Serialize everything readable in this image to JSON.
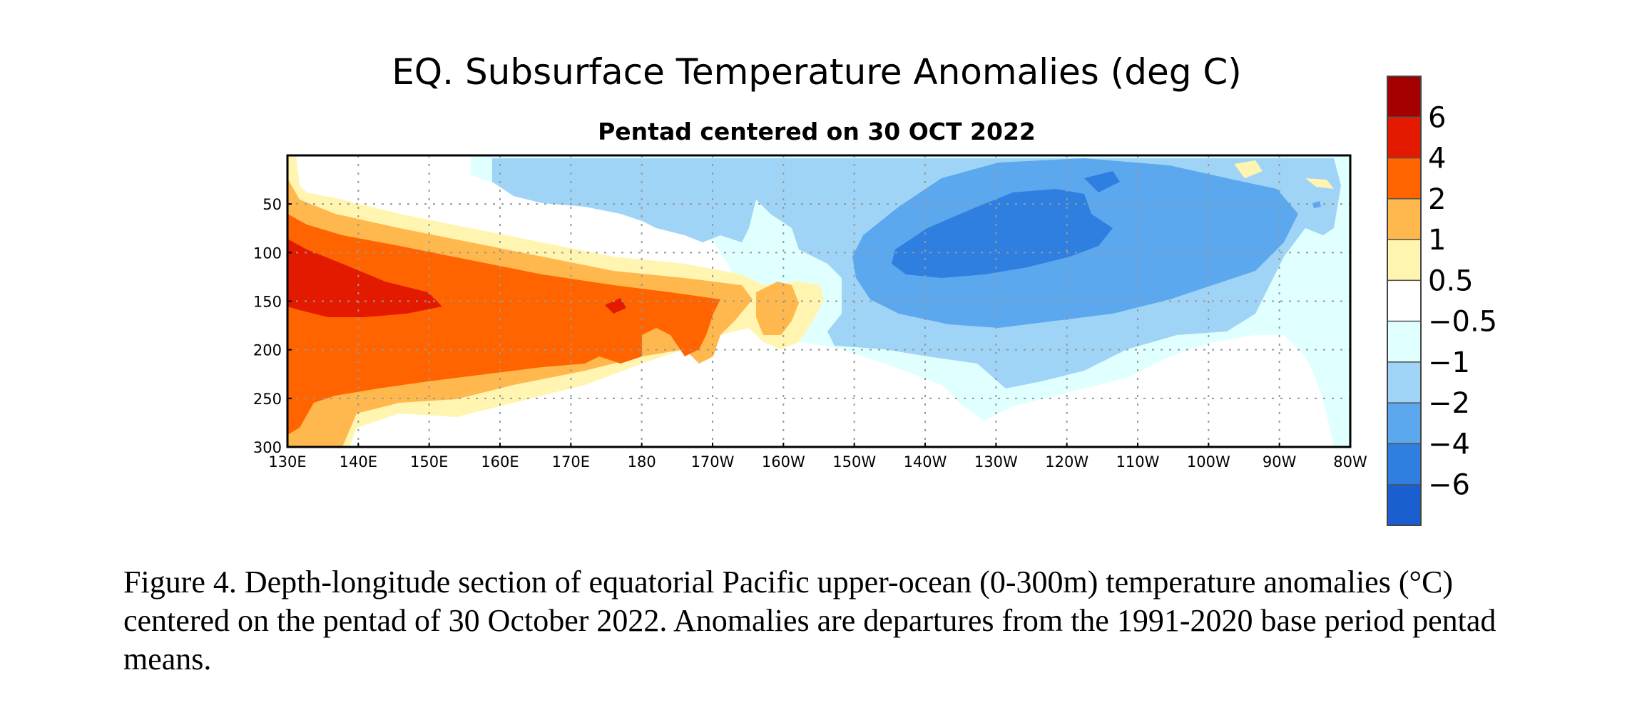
{
  "chart_data": {
    "type": "heatmap",
    "title": "EQ. Subsurface Temperature Anomalies (deg C)",
    "subtitle": "Pentad centered on 30 OCT 2022",
    "xlabel": "",
    "ylabel": "",
    "x_ticks": [
      "130E",
      "140E",
      "150E",
      "160E",
      "170E",
      "180",
      "170W",
      "160W",
      "150W",
      "140W",
      "130W",
      "120W",
      "110W",
      "100W",
      "90W",
      "80W"
    ],
    "y_ticks": [
      "50",
      "100",
      "150",
      "200",
      "250",
      "300"
    ],
    "x_range_deg_east": [
      130,
      280
    ],
    "y_range_m": [
      0,
      300
    ],
    "y_reversed": true,
    "grid": true,
    "colorbar": {
      "placement": "right",
      "labels": [
        "6",
        "4",
        "2",
        "1",
        "0.5",
        "−0.5",
        "−1",
        "−2",
        "−4",
        "−6"
      ],
      "colors": [
        "#a50000",
        "#e31a00",
        "#ff6400",
        "#ffb84d",
        "#fff5b0",
        "#ffffff",
        "#e0ffff",
        "#9fd4f7",
        "#5ba8ef",
        "#2e7fe0",
        "#1a5fcf"
      ]
    },
    "regions": [
      {
        "name": "warm-upper-layer",
        "level": 0.5
      },
      {
        "name": "western-warm-core",
        "level": 1
      },
      {
        "name": "western-main",
        "level": 2
      },
      {
        "name": "western-strong",
        "level": 4
      },
      {
        "name": "eastern-cool-upper",
        "level": -1
      },
      {
        "name": "eastern-cool",
        "level": -2
      },
      {
        "name": "eastern-cold-core",
        "level": -4
      }
    ]
  },
  "caption": "Figure 4. Depth-longitude section of equatorial Pacific upper-ocean (0-300m) temperature anomalies (°C) centered on the pentad of 30 October 2022. Anomalies are departures from the 1991-2020 base period pentad means."
}
